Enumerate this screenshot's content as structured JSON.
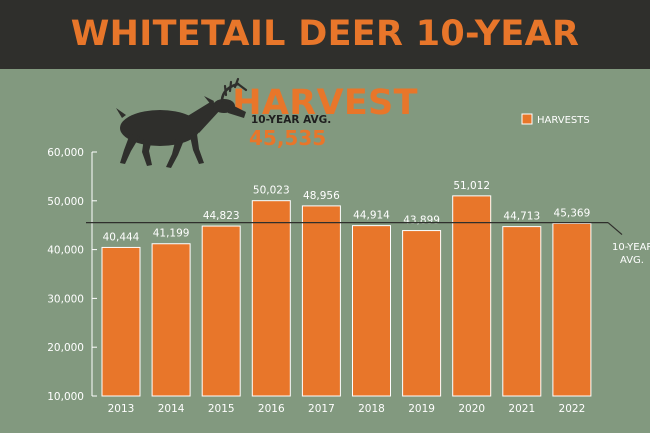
{
  "colors": {
    "background": "#82997f",
    "title_bar": "#2f2f2c",
    "title_text": "#e8762a",
    "bar": "#e8762a",
    "bar_stroke": "#ffffff",
    "avg_line": "#2f2f2c",
    "deer": "#2f2f2c"
  },
  "icon": "deer-silhouette-icon",
  "chart_data": {
    "type": "bar",
    "title": "WHITETAIL DEER 10-YEAR HARVEST",
    "categories": [
      "2013",
      "2014",
      "2015",
      "2016",
      "2017",
      "2018",
      "2019",
      "2020",
      "2021",
      "2022"
    ],
    "series": [
      {
        "name": "HARVESTS",
        "values": [
          40444,
          41199,
          44823,
          50023,
          48956,
          44914,
          43899,
          51012,
          44713,
          45369
        ]
      }
    ],
    "data_labels": [
      "40,444",
      "41,199",
      "44,823",
      "50,023",
      "48,956",
      "44,914",
      "43,899",
      "51,012",
      "44,713",
      "45,369"
    ],
    "ylim": [
      10000,
      60000
    ],
    "yticks": [
      10000,
      20000,
      30000,
      40000,
      50000,
      60000
    ],
    "ytick_labels": [
      "10,000",
      "20,000",
      "30,000",
      "40,000",
      "50,000",
      "60,000"
    ],
    "legend": {
      "label": "HARVESTS",
      "placement": "top-right"
    },
    "average": {
      "value": 45535,
      "label": "10-YEAR AVG.",
      "value_label": "45,535",
      "line_label": [
        "10-YEAR",
        "AVG."
      ]
    },
    "grid": false
  }
}
